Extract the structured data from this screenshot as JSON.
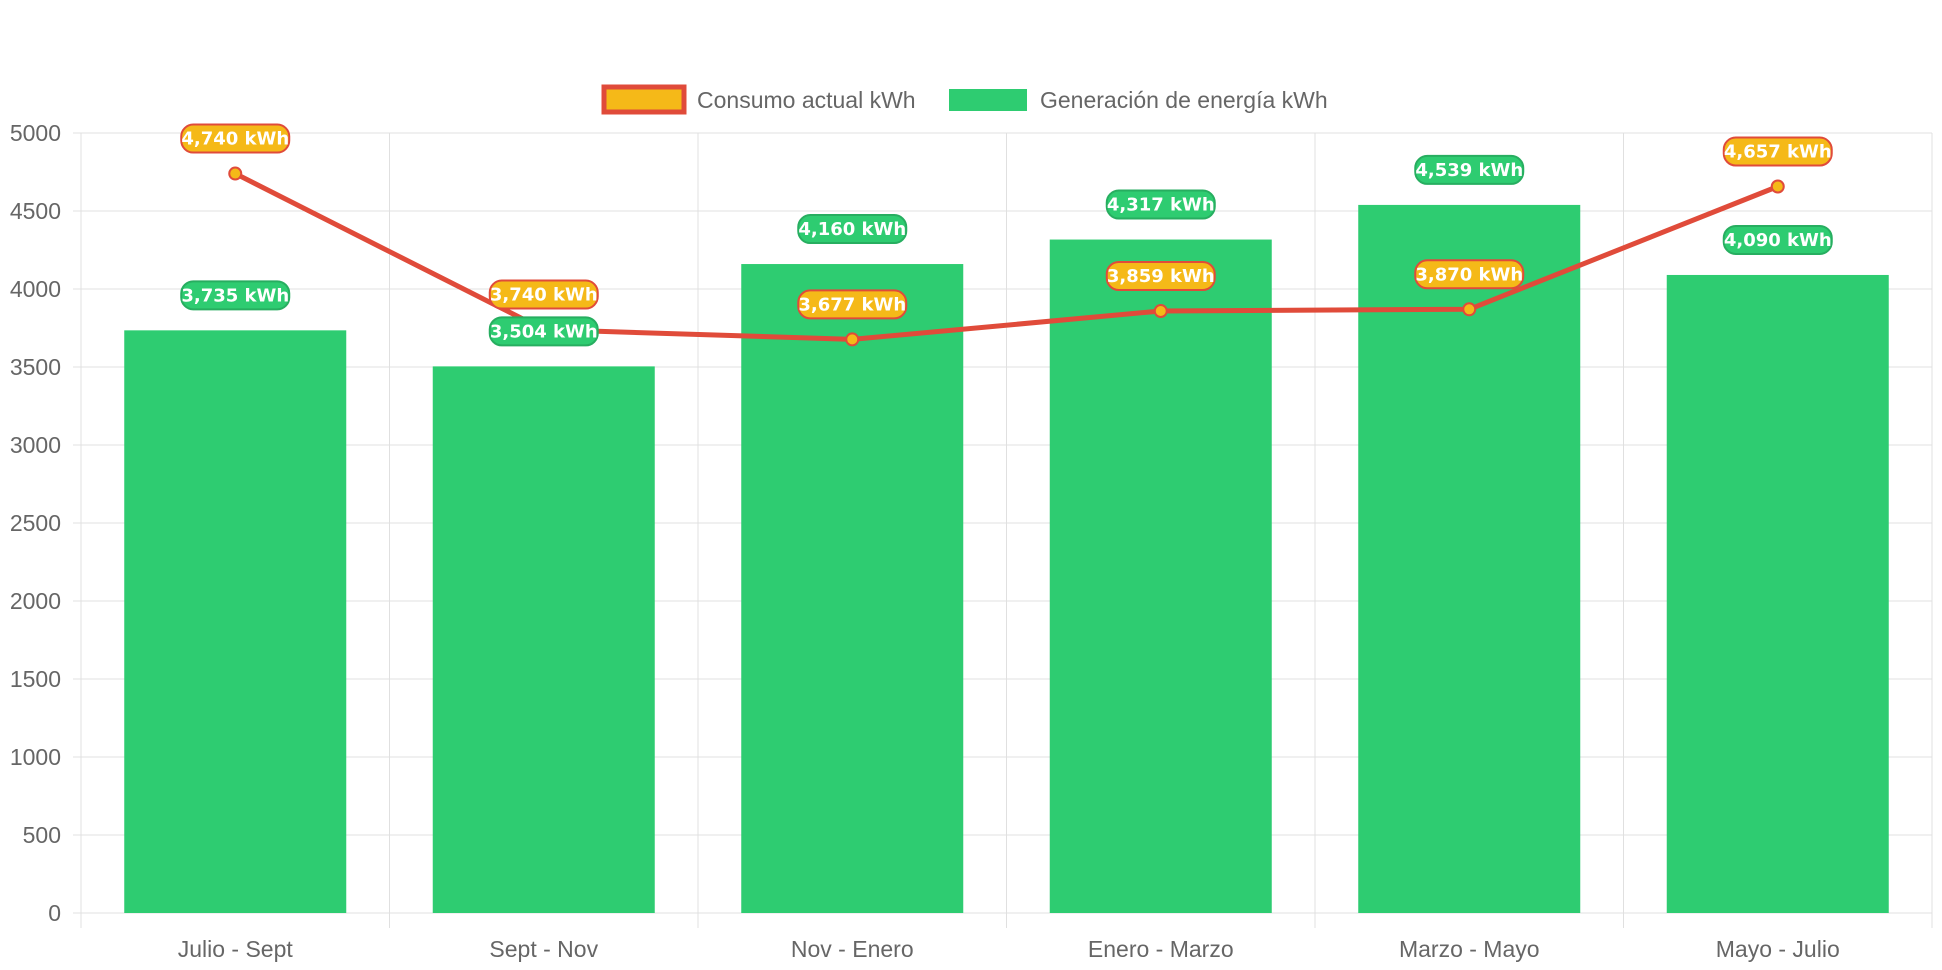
{
  "chart_data": {
    "type": "bar",
    "categories": [
      "Julio - Sept",
      "Sept - Nov",
      "Nov - Enero",
      "Enero - Marzo",
      "Marzo - Mayo",
      "Mayo - Julio"
    ],
    "ylim": [
      0,
      5000
    ],
    "yticks": [
      0,
      500,
      1000,
      1500,
      2000,
      2500,
      3000,
      3500,
      4000,
      4500,
      5000
    ],
    "grid": true,
    "legend_position": "top-center",
    "series": [
      {
        "name": "Consumo actual kWh",
        "type": "line",
        "values": [
          4740,
          3740,
          3677,
          3859,
          3870,
          4657
        ],
        "labels": [
          "4,740 kWh",
          "3,740 kWh",
          "3,677 kWh",
          "3,859 kWh",
          "3,870 kWh",
          "4,657 kWh"
        ],
        "line_color": "#e04b3a",
        "fill_color": "#f5b918"
      },
      {
        "name": "Generación de energía kWh",
        "type": "bar",
        "values": [
          3735,
          3504,
          4160,
          4317,
          4539,
          4090
        ],
        "labels": [
          "3,735 kWh",
          "3,504 kWh",
          "4,160 kWh",
          "4,317 kWh",
          "4,539 kWh",
          "4,090 kWh"
        ],
        "fill_color": "#2ecc71",
        "label_border_color": "#27ae60"
      }
    ]
  },
  "colors": {
    "grid": "#e0e0e0",
    "axis_text": "#666666"
  }
}
